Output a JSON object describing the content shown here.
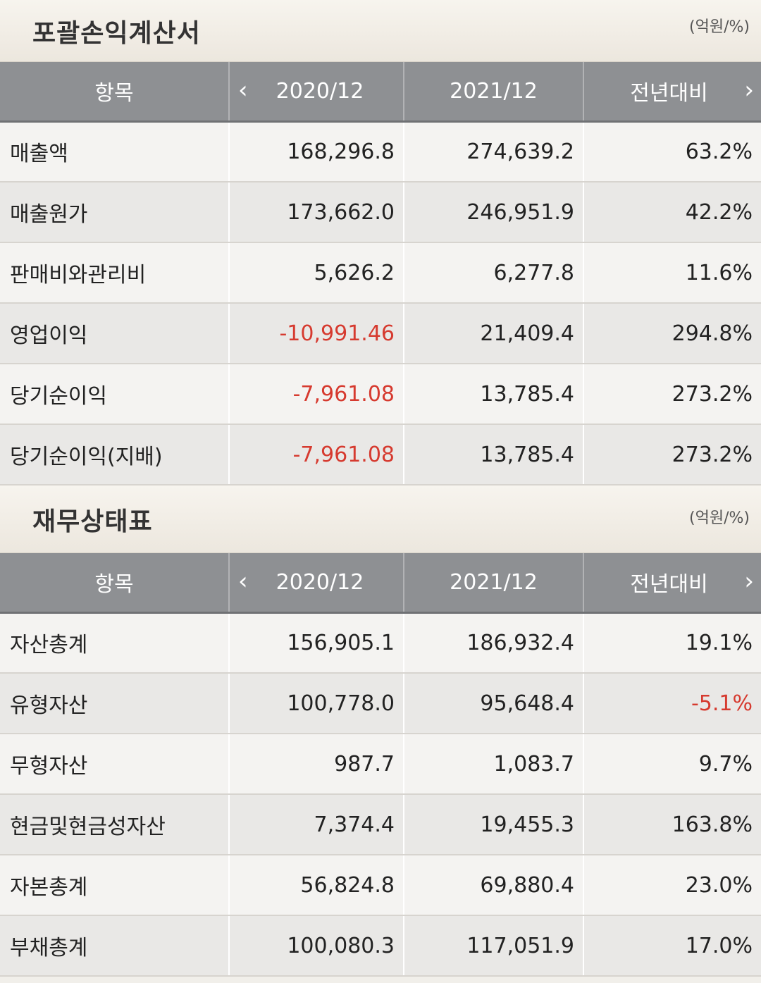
{
  "colors": {
    "header_bg": "#8e9093",
    "negative": "#d63a2f",
    "title_text": "#333333"
  },
  "sections": [
    {
      "title": "포괄손익계산서",
      "unit": "(억원/%)",
      "headers": {
        "item": "항목",
        "prev": "2020/12",
        "curr": "2021/12",
        "yoy": "전년대비",
        "prev_arrow_icon": "chevron-left-icon",
        "next_arrow_icon": "chevron-right-icon"
      },
      "rows": [
        {
          "label": "매출액",
          "prev": "168,296.8",
          "curr": "274,639.2",
          "yoy": "63.2%",
          "prev_negative": false,
          "yoy_negative": false
        },
        {
          "label": "매출원가",
          "prev": "173,662.0",
          "curr": "246,951.9",
          "yoy": "42.2%",
          "prev_negative": false,
          "yoy_negative": false
        },
        {
          "label": "판매비와관리비",
          "prev": "5,626.2",
          "curr": "6,277.8",
          "yoy": "11.6%",
          "prev_negative": false,
          "yoy_negative": false
        },
        {
          "label": "영업이익",
          "prev": "-10,991.46",
          "curr": "21,409.4",
          "yoy": "294.8%",
          "prev_negative": true,
          "yoy_negative": false
        },
        {
          "label": "당기순이익",
          "prev": "-7,961.08",
          "curr": "13,785.4",
          "yoy": "273.2%",
          "prev_negative": true,
          "yoy_negative": false
        },
        {
          "label": "당기순이익(지배)",
          "prev": "-7,961.08",
          "curr": "13,785.4",
          "yoy": "273.2%",
          "prev_negative": true,
          "yoy_negative": false
        }
      ]
    },
    {
      "title": "재무상태표",
      "unit": "(억원/%)",
      "headers": {
        "item": "항목",
        "prev": "2020/12",
        "curr": "2021/12",
        "yoy": "전년대비",
        "prev_arrow_icon": "chevron-left-icon",
        "next_arrow_icon": "chevron-right-icon"
      },
      "rows": [
        {
          "label": "자산총계",
          "prev": "156,905.1",
          "curr": "186,932.4",
          "yoy": "19.1%",
          "prev_negative": false,
          "yoy_negative": false
        },
        {
          "label": "유형자산",
          "prev": "100,778.0",
          "curr": "95,648.4",
          "yoy": "-5.1%",
          "prev_negative": false,
          "yoy_negative": true
        },
        {
          "label": "무형자산",
          "prev": "987.7",
          "curr": "1,083.7",
          "yoy": "9.7%",
          "prev_negative": false,
          "yoy_negative": false
        },
        {
          "label": "현금및현금성자산",
          "prev": "7,374.4",
          "curr": "19,455.3",
          "yoy": "163.8%",
          "prev_negative": false,
          "yoy_negative": false
        },
        {
          "label": "자본총계",
          "prev": "56,824.8",
          "curr": "69,880.4",
          "yoy": "23.0%",
          "prev_negative": false,
          "yoy_negative": false
        },
        {
          "label": "부채총계",
          "prev": "100,080.3",
          "curr": "117,051.9",
          "yoy": "17.0%",
          "prev_negative": false,
          "yoy_negative": false
        }
      ]
    }
  ]
}
